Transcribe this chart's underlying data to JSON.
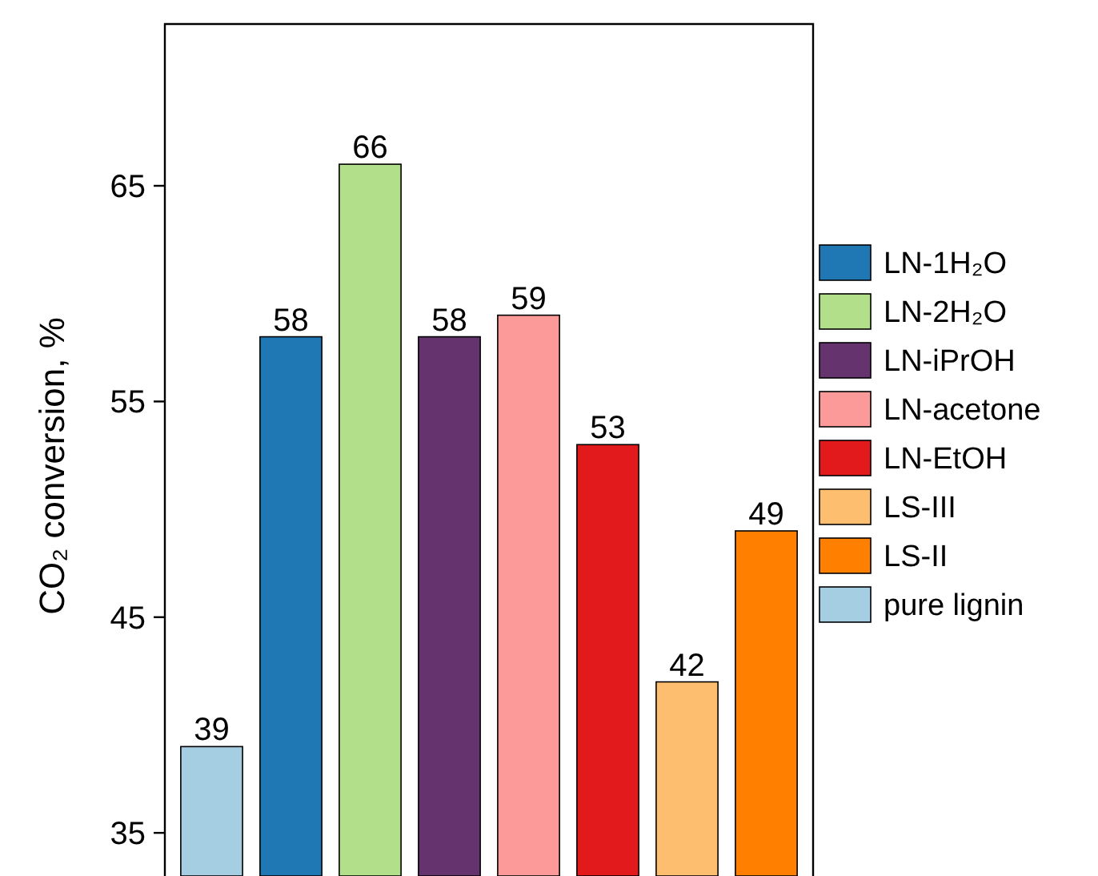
{
  "chart_data": {
    "type": "bar",
    "ylabel": "CO₂ conversion, %",
    "categories": [
      null,
      null,
      null,
      null,
      null,
      null,
      null,
      null
    ],
    "series": [
      {
        "name": "LN-1H₂O",
        "color": "#1f78b4",
        "values": [
          null,
          58,
          null,
          null,
          null,
          null,
          null,
          null
        ]
      },
      {
        "name": "LN-2H₂O",
        "color": "#b2df8a",
        "values": [
          null,
          null,
          66,
          null,
          null,
          null,
          null,
          null
        ]
      },
      {
        "name": "LN-iPrOH",
        "color": "#65346f",
        "values": [
          null,
          null,
          null,
          58,
          null,
          null,
          null,
          null
        ]
      },
      {
        "name": "LN-acetone",
        "color": "#fb9a99",
        "values": [
          null,
          null,
          null,
          null,
          59,
          null,
          null,
          null
        ]
      },
      {
        "name": "LN-EtOH",
        "color": "#e31a1c",
        "values": [
          null,
          null,
          null,
          null,
          null,
          53,
          null,
          null
        ]
      },
      {
        "name": "LS-III",
        "color": "#fdbf6f",
        "values": [
          null,
          null,
          null,
          null,
          null,
          null,
          42,
          null
        ]
      },
      {
        "name": "LS-II",
        "color": "#ff7f00",
        "values": [
          null,
          null,
          null,
          null,
          null,
          null,
          null,
          49
        ]
      },
      {
        "name": "pure lignin",
        "color": "#a6cee3",
        "values": [
          39,
          null,
          null,
          null,
          null,
          null,
          null,
          null
        ]
      }
    ],
    "ylim": [
      33,
      72.5
    ],
    "yticks": [
      35,
      45,
      55,
      65
    ],
    "data_labels": true,
    "legend": "right"
  }
}
